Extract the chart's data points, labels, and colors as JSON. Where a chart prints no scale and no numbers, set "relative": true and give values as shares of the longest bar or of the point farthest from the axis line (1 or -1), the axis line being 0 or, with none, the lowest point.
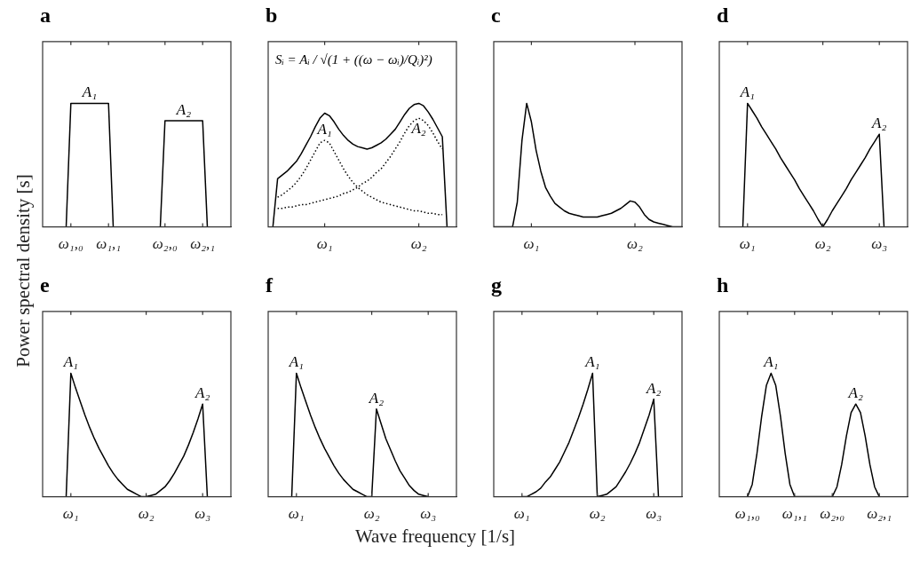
{
  "chart_data": [
    {
      "type": "line",
      "title": "a",
      "ylabel": "Power spectral density [s]",
      "relative": true,
      "categories": [
        null,
        null,
        null,
        null,
        null,
        null,
        "ω₁,₀",
        null,
        null,
        null,
        null,
        null,
        null,
        null,
        "ω₁,₁",
        null,
        null,
        null,
        null,
        null,
        null,
        null,
        null,
        null,
        null,
        null,
        "ω₂,₀",
        null,
        null,
        null,
        null,
        null,
        null,
        null,
        "ω₂,₁",
        null,
        null,
        null,
        null,
        null,
        null
      ],
      "series": [
        {
          "color": "#000000",
          "values": [
            null,
            null,
            null,
            null,
            null,
            0,
            1,
            1,
            1,
            1,
            1,
            1,
            1,
            1,
            1,
            0,
            null,
            null,
            null,
            null,
            null,
            null,
            null,
            null,
            null,
            null,
            null,
            null,
            null,
            null,
            null,
            null,
            null,
            null,
            null,
            null,
            null,
            null,
            null,
            null,
            null
          ]
        },
        {
          "color": "#000000",
          "values": [
            null,
            null,
            null,
            null,
            null,
            null,
            null,
            null,
            null,
            null,
            null,
            null,
            null,
            null,
            null,
            null,
            null,
            null,
            null,
            null,
            null,
            null,
            null,
            null,
            null,
            0,
            0.86,
            0.86,
            0.86,
            0.86,
            0.86,
            0.86,
            0.86,
            0.86,
            0.86,
            0,
            null,
            null,
            null,
            null,
            null
          ]
        }
      ],
      "annotations": [
        {
          "text": "A₁",
          "y": 1
        },
        {
          "text": "A₂",
          "y": 0.86
        }
      ]
    },
    {
      "type": "line",
      "title": "b",
      "relative": true,
      "categories": [
        null,
        null,
        null,
        null,
        null,
        null,
        null,
        null,
        null,
        null,
        null,
        null,
        "ω₁",
        null,
        null,
        null,
        null,
        null,
        null,
        null,
        null,
        null,
        null,
        null,
        null,
        null,
        null,
        null,
        null,
        null,
        null,
        null,
        "ω₂",
        null,
        null,
        null,
        null,
        null,
        null,
        null,
        null
      ],
      "series": [
        {
          "color": "#000000",
          "values": [
            null,
            0,
            0.39,
            0.42,
            0.45,
            0.49,
            0.53,
            0.59,
            0.66,
            0.73,
            0.81,
            0.88,
            0.92,
            0.9,
            0.85,
            0.79,
            0.74,
            0.7,
            0.67,
            0.65,
            0.64,
            0.63,
            0.64,
            0.66,
            0.68,
            0.71,
            0.75,
            0.79,
            0.85,
            0.91,
            0.96,
            0.99,
            1,
            0.98,
            0.93,
            0.87,
            0.8,
            0.73,
            0,
            null,
            null
          ]
        },
        {
          "color": "#000000",
          "line_style": "dotted",
          "values": [
            null,
            null,
            0.24,
            0.26,
            0.29,
            0.32,
            0.36,
            0.41,
            0.47,
            0.54,
            0.61,
            0.68,
            0.7,
            0.68,
            0.61,
            0.54,
            0.47,
            0.41,
            0.36,
            0.32,
            0.29,
            0.26,
            0.24,
            0.22,
            0.2,
            0.19,
            0.18,
            0.17,
            0.16,
            0.15,
            0.14,
            0.13,
            0.13,
            0.12,
            0.11,
            0.11,
            0.1,
            0.1,
            null,
            null,
            null
          ]
        },
        {
          "color": "#000000",
          "line_style": "dotted",
          "values": [
            null,
            null,
            0.15,
            0.15,
            0.16,
            0.16,
            0.17,
            0.18,
            0.18,
            0.19,
            0.2,
            0.21,
            0.22,
            0.23,
            0.24,
            0.25,
            0.27,
            0.28,
            0.3,
            0.32,
            0.35,
            0.37,
            0.4,
            0.44,
            0.47,
            0.52,
            0.57,
            0.63,
            0.69,
            0.76,
            0.82,
            0.86,
            0.88,
            0.86,
            0.82,
            0.76,
            0.69,
            0.63,
            null,
            null,
            null
          ]
        }
      ],
      "annotations": [
        "Sᵢ = Aᵢ / √(1 + ((ω − ωᵢ)/Qᵢ)²)",
        {
          "text": "A₁",
          "y": 0.7
        },
        {
          "text": "A₂",
          "y": 0.88
        }
      ]
    },
    {
      "type": "line",
      "title": "c",
      "relative": true,
      "categories": [
        null,
        null,
        null,
        null,
        null,
        null,
        null,
        null,
        "ω₁",
        null,
        null,
        null,
        null,
        null,
        null,
        null,
        null,
        null,
        null,
        null,
        null,
        null,
        null,
        null,
        null,
        null,
        null,
        null,
        null,
        null,
        "ω₂",
        null,
        null,
        null,
        null,
        null,
        null,
        null,
        null,
        null,
        null
      ],
      "series": [
        {
          "color": "#000000",
          "values": [
            0,
            0,
            0,
            0,
            0,
            0.2,
            0.7,
            1,
            0.85,
            0.62,
            0.45,
            0.32,
            0.25,
            0.19,
            0.16,
            0.13,
            0.11,
            0.1,
            0.09,
            0.08,
            0.08,
            0.08,
            0.08,
            0.09,
            0.1,
            0.11,
            0.13,
            0.15,
            0.18,
            0.21,
            0.2,
            0.16,
            0.1,
            0.06,
            0.04,
            0.03,
            0.02,
            0.01,
            0,
            0,
            0
          ]
        }
      ]
    },
    {
      "type": "line",
      "title": "d",
      "relative": true,
      "categories": [
        null,
        null,
        null,
        null,
        null,
        null,
        "ω₁",
        null,
        null,
        null,
        null,
        null,
        null,
        null,
        null,
        null,
        null,
        null,
        null,
        null,
        null,
        null,
        "ω₂",
        null,
        null,
        null,
        null,
        null,
        null,
        null,
        null,
        null,
        null,
        null,
        "ω₃",
        null,
        null,
        null,
        null,
        null,
        null
      ],
      "series": [
        {
          "color": "#000000",
          "values": [
            null,
            null,
            null,
            null,
            null,
            0,
            1,
            0.94,
            0.88,
            0.81,
            0.75,
            0.69,
            0.63,
            0.56,
            0.5,
            0.44,
            0.38,
            0.31,
            0.25,
            0.19,
            0.13,
            0.06,
            0,
            0.06,
            0.13,
            0.19,
            0.25,
            0.31,
            0.38,
            0.44,
            0.5,
            0.56,
            0.63,
            0.69,
            0.75,
            0,
            null,
            null,
            null,
            null,
            null
          ]
        }
      ],
      "annotations": [
        {
          "text": "A₁",
          "x": "ω₁",
          "y": 1
        },
        {
          "text": "A₂",
          "x": "ω₃",
          "y": 0.75
        }
      ]
    },
    {
      "type": "line",
      "title": "e",
      "relative": true,
      "categories": [
        null,
        null,
        null,
        null,
        null,
        null,
        "ω₁",
        null,
        null,
        null,
        null,
        null,
        null,
        null,
        null,
        null,
        null,
        null,
        null,
        null,
        null,
        null,
        "ω₂",
        null,
        null,
        null,
        null,
        null,
        null,
        null,
        null,
        null,
        null,
        null,
        "ω₃",
        null,
        null,
        null,
        null,
        null,
        null
      ],
      "series": [
        {
          "color": "#000000",
          "values": [
            null,
            null,
            null,
            null,
            null,
            0,
            1,
            0.88,
            0.77,
            0.66,
            0.56,
            0.47,
            0.39,
            0.32,
            0.25,
            0.19,
            0.14,
            0.1,
            0.06,
            0.04,
            0.02,
            0,
            0,
            0.01,
            0.02,
            0.05,
            0.08,
            0.13,
            0.19,
            0.26,
            0.33,
            0.42,
            0.52,
            0.63,
            0.75,
            0,
            null,
            null,
            null,
            null,
            null
          ]
        }
      ],
      "annotations": [
        {
          "text": "A₁",
          "x": "ω₁",
          "y": 1
        },
        {
          "text": "A₂",
          "x": "ω₃",
          "y": 0.75
        }
      ]
    },
    {
      "type": "line",
      "title": "f",
      "xlabel": "Wave frequency [1/s]",
      "relative": true,
      "categories": [
        null,
        null,
        null,
        null,
        null,
        null,
        "ω₁",
        null,
        null,
        null,
        null,
        null,
        null,
        null,
        null,
        null,
        null,
        null,
        null,
        null,
        null,
        null,
        "ω₂",
        null,
        null,
        null,
        null,
        null,
        null,
        null,
        null,
        null,
        null,
        null,
        "ω₃",
        null,
        null,
        null,
        null,
        null,
        null
      ],
      "series": [
        {
          "color": "#000000",
          "values": [
            null,
            null,
            null,
            null,
            null,
            0,
            1,
            0.88,
            0.77,
            0.66,
            0.56,
            0.47,
            0.39,
            0.32,
            0.25,
            0.19,
            0.14,
            0.1,
            0.06,
            0.04,
            0.02,
            0,
            0,
            0.71,
            0.59,
            0.47,
            0.38,
            0.29,
            0.21,
            0.15,
            0.09,
            0.05,
            0.02,
            0.01,
            0,
            null,
            null,
            null,
            null,
            null,
            null
          ]
        }
      ],
      "annotations": [
        {
          "text": "A₁",
          "x": "ω₁",
          "y": 1
        },
        {
          "text": "A₂",
          "y": 0.71
        }
      ]
    },
    {
      "type": "line",
      "title": "g",
      "relative": true,
      "categories": [
        null,
        null,
        null,
        null,
        null,
        null,
        "ω₁",
        null,
        null,
        null,
        null,
        null,
        null,
        null,
        null,
        null,
        null,
        null,
        null,
        null,
        null,
        null,
        "ω₂",
        null,
        null,
        null,
        null,
        null,
        null,
        null,
        null,
        null,
        null,
        null,
        "ω₃",
        null,
        null,
        null,
        null,
        null,
        null
      ],
      "series": [
        {
          "color": "#000000",
          "values": [
            null,
            null,
            null,
            null,
            null,
            null,
            0,
            0,
            0.02,
            0.04,
            0.07,
            0.12,
            0.16,
            0.22,
            0.28,
            0.36,
            0.44,
            0.54,
            0.64,
            0.75,
            0.87,
            1,
            0,
            0.01,
            0.02,
            0.05,
            0.08,
            0.14,
            0.2,
            0.27,
            0.35,
            0.44,
            0.55,
            0.66,
            0.79,
            0,
            null,
            null,
            null,
            null,
            null
          ]
        }
      ],
      "annotations": [
        {
          "text": "A₁",
          "y": 1
        },
        {
          "text": "A₂",
          "x": "ω₃",
          "y": 0.79
        }
      ]
    },
    {
      "type": "line",
      "title": "h",
      "relative": true,
      "categories": [
        null,
        null,
        null,
        null,
        null,
        null,
        "ω₁,₀",
        null,
        null,
        null,
        null,
        null,
        null,
        null,
        null,
        null,
        "ω₁,₁",
        null,
        null,
        null,
        null,
        null,
        null,
        null,
        "ω₂,₀",
        null,
        null,
        null,
        null,
        null,
        null,
        null,
        null,
        null,
        "ω₂,₁",
        null,
        null,
        null,
        null,
        null,
        null
      ],
      "series": [
        {
          "color": "#000000",
          "values": [
            null,
            null,
            null,
            null,
            null,
            null,
            0,
            0.1,
            0.35,
            0.65,
            0.9,
            1,
            0.9,
            0.65,
            0.35,
            0.1,
            0,
            0,
            0,
            0,
            0,
            0,
            0,
            0,
            0,
            0.08,
            0.26,
            0.49,
            0.68,
            0.75,
            0.68,
            0.49,
            0.26,
            0.08,
            0,
            null,
            null,
            null,
            null,
            null,
            null
          ]
        }
      ],
      "annotations": [
        {
          "text": "A₁",
          "y": 1
        },
        {
          "text": "A₂",
          "y": 0.75
        }
      ]
    }
  ]
}
